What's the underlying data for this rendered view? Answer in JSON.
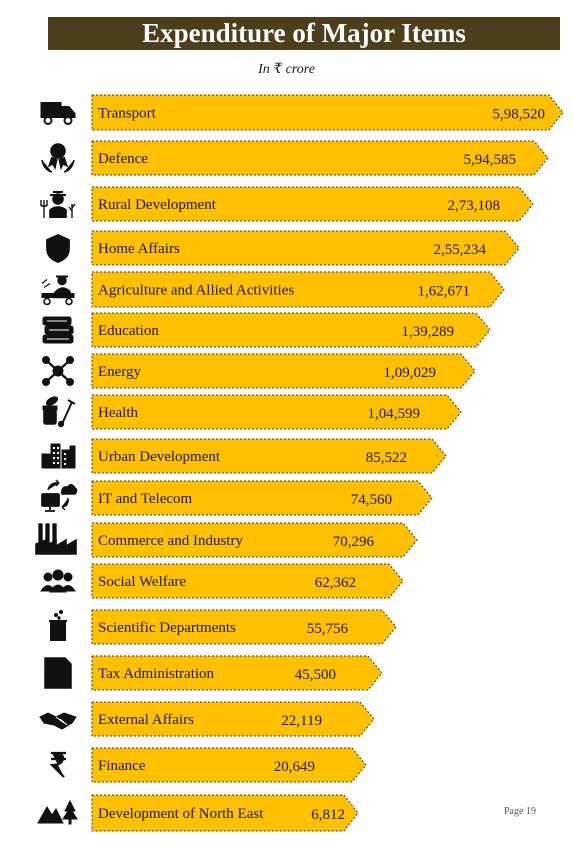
{
  "header": {
    "title": "Expenditure of Major Items",
    "unit": "In ₹ crore"
  },
  "footer": {
    "page_label": "Page 19"
  },
  "chart_data": {
    "type": "bar",
    "orientation": "horizontal",
    "title": "Expenditure of Major Items",
    "subtitle": "In ₹ crore",
    "bar_color": "#ffc000",
    "categories": [
      "Transport",
      "Defence",
      "Rural Development",
      "Home Affairs",
      "Agriculture and Allied Activities",
      "Education",
      "Energy",
      "Health",
      "Urban Development",
      "IT and Telecom",
      "Commerce and Industry",
      "Social Welfare",
      "Scientific Departments",
      "Tax Administration",
      "External Affairs",
      "Finance",
      "Development of North East"
    ],
    "values": [
      598520,
      594585,
      273108,
      255234,
      162671,
      139289,
      109029,
      104599,
      85522,
      74560,
      70296,
      62362,
      55756,
      45500,
      22119,
      20649,
      6812
    ],
    "value_labels": [
      "5,98,520",
      "5,94,585",
      "2,73,108",
      "2,55,234",
      "1,62,671",
      "1,39,289",
      "1,09,029",
      "1,04,599",
      "85,522",
      "74,560",
      "70,296",
      "62,362",
      "55,756",
      "45,500",
      "22,119",
      "20,649",
      "6,812"
    ],
    "icons": [
      "truck-icon",
      "defence-medal-icon",
      "farmer-icon",
      "police-shield-icon",
      "farmer-tractor-icon",
      "books-icon",
      "energy-network-icon",
      "medicine-icon",
      "city-buildings-icon",
      "computer-cloud-icon",
      "factory-icon",
      "people-group-icon",
      "lab-beaker-icon",
      "tax-document-icon",
      "handshake-icon",
      "rupee-icon",
      "mountains-trees-icon"
    ]
  }
}
